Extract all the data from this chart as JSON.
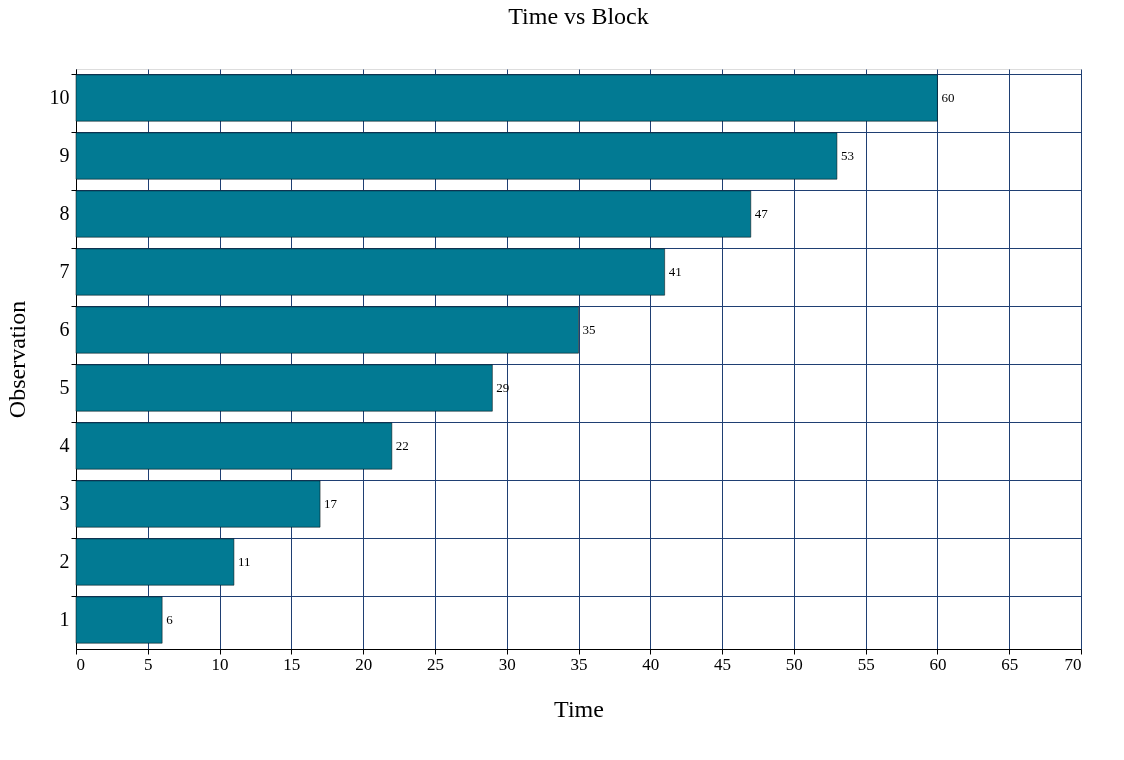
{
  "chart_data": {
    "type": "bar",
    "orientation": "horizontal",
    "title": "Time vs Block",
    "xlabel": "Time",
    "ylabel": "Observation",
    "categories": [
      "10",
      "9",
      "8",
      "7",
      "6",
      "5",
      "4",
      "3",
      "2",
      "1"
    ],
    "values": [
      60,
      53,
      47,
      41,
      35,
      29,
      22,
      17,
      11,
      6
    ],
    "color": "#027a93",
    "xlim": [
      0,
      70
    ],
    "xticks": [
      0,
      5,
      10,
      15,
      20,
      25,
      30,
      35,
      40,
      45,
      50,
      55,
      60,
      65,
      70
    ],
    "grid": true,
    "data_labels": true
  }
}
